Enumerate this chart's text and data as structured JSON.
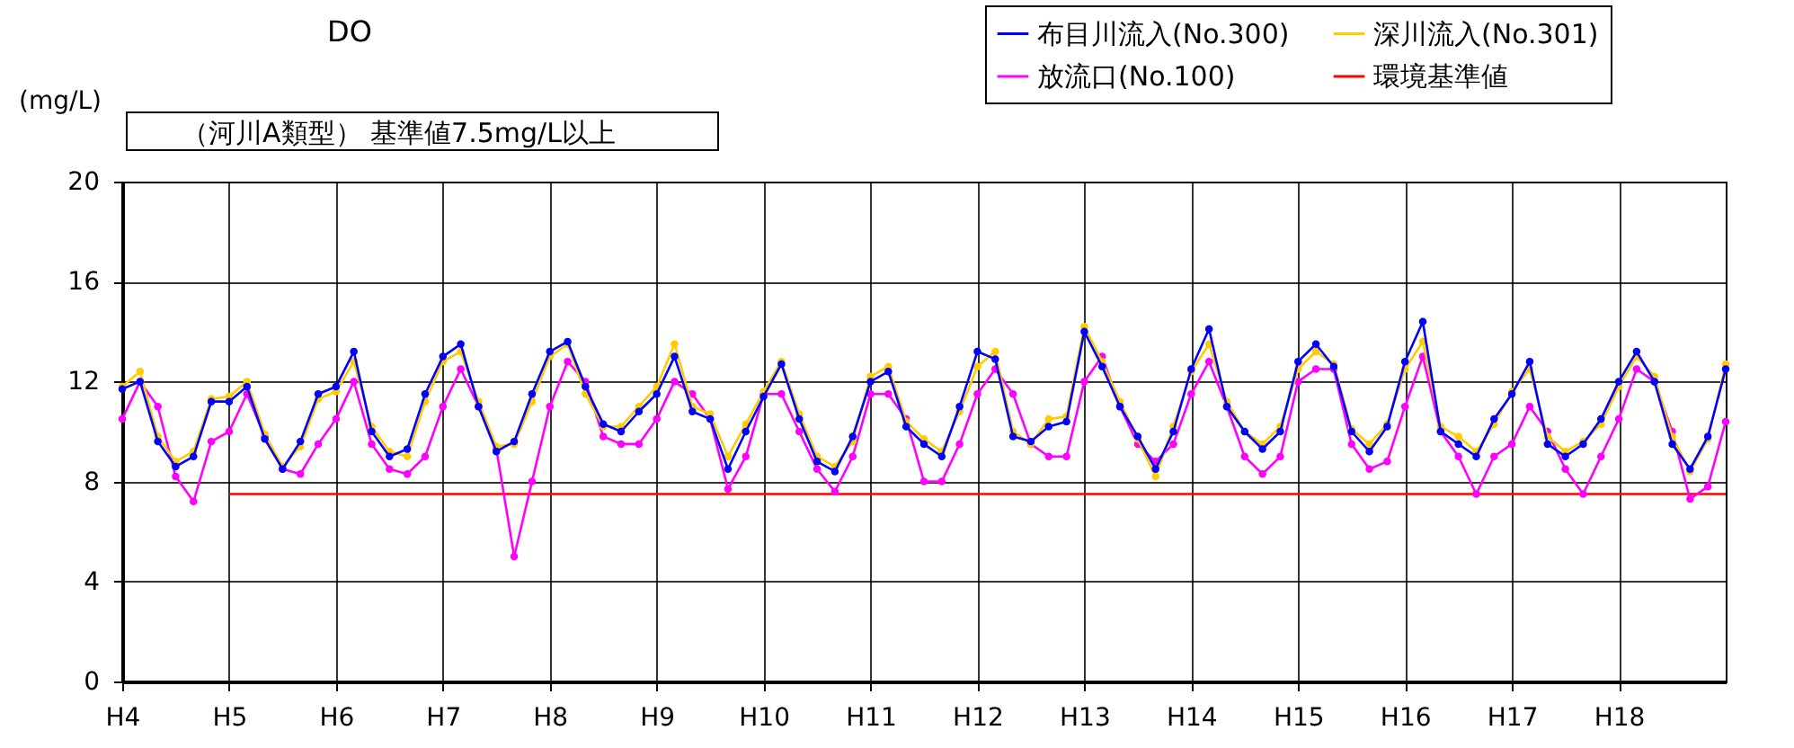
{
  "chart_data": {
    "type": "line",
    "title": "DO",
    "ylabel": "(mg/L)",
    "annotations": [
      "（河川A類型） 基準値7.5mg/L以上"
    ],
    "categories": [
      "H4",
      null,
      null,
      null,
      null,
      null,
      "H5",
      null,
      null,
      null,
      null,
      null,
      "H6",
      null,
      null,
      null,
      null,
      null,
      "H7",
      null,
      null,
      null,
      null,
      null,
      "H8",
      null,
      null,
      null,
      null,
      null,
      "H9",
      null,
      null,
      null,
      null,
      null,
      "H10",
      null,
      null,
      null,
      null,
      null,
      "H11",
      null,
      null,
      null,
      null,
      null,
      "H12",
      null,
      null,
      null,
      null,
      null,
      "H13",
      null,
      null,
      null,
      null,
      null,
      "H14",
      null,
      null,
      null,
      null,
      null,
      "H15",
      null,
      null,
      null,
      null,
      null,
      "H16",
      null,
      null,
      null,
      null,
      null,
      "H17",
      null,
      null,
      null,
      null,
      null,
      "H18",
      null,
      null,
      null,
      null,
      null,
      null
    ],
    "ylim": [
      0,
      20
    ],
    "yticks": [
      0,
      4,
      8,
      12,
      16,
      20
    ],
    "grid": true,
    "legend": "top right",
    "marker": "circle",
    "series": [
      {
        "name": "布目川流入(No.300)",
        "color": "#0000ff",
        "values": [
          11.7,
          12.0,
          9.6,
          8.6,
          9.0,
          11.2,
          11.2,
          11.8,
          9.7,
          8.5,
          9.6,
          11.5,
          11.8,
          13.2,
          10.0,
          9.0,
          9.3,
          11.5,
          13.0,
          13.5,
          11.0,
          9.2,
          9.6,
          11.5,
          13.2,
          13.6,
          11.8,
          10.3,
          10.0,
          10.8,
          11.5,
          13.0,
          10.8,
          10.5,
          8.5,
          10.0,
          11.4,
          12.7,
          10.5,
          8.8,
          8.4,
          9.8,
          12.0,
          12.4,
          10.2,
          9.5,
          9.0,
          11.0,
          13.2,
          12.9,
          9.8,
          9.6,
          10.2,
          10.4,
          14.0,
          12.6,
          11.0,
          9.8,
          8.5,
          10.0,
          12.5,
          14.1,
          11.0,
          10.0,
          9.3,
          10.0,
          12.8,
          13.5,
          12.6,
          10.0,
          9.2,
          10.2,
          12.8,
          14.4,
          10.0,
          9.5,
          9.0,
          10.5,
          11.5,
          12.8,
          9.5,
          9.0,
          9.5,
          10.5,
          12.0,
          13.2,
          12.0,
          9.5,
          8.5,
          9.8,
          12.5
        ]
      },
      {
        "name": "深川流入(No.301)",
        "color": "#ffcc00",
        "values": [
          11.8,
          12.4,
          9.8,
          8.8,
          9.2,
          11.3,
          11.4,
          12.0,
          9.9,
          8.6,
          9.4,
          11.3,
          11.6,
          12.8,
          10.2,
          9.2,
          9.0,
          11.2,
          12.8,
          13.2,
          11.2,
          9.4,
          9.5,
          11.2,
          13.0,
          13.5,
          11.5,
          10.2,
          10.2,
          11.0,
          11.8,
          13.5,
          11.0,
          10.7,
          9.0,
          10.3,
          11.6,
          12.8,
          10.7,
          9.0,
          8.6,
          9.6,
          12.2,
          12.6,
          10.4,
          9.7,
          9.2,
          10.8,
          12.6,
          13.2,
          10.0,
          9.5,
          10.5,
          10.6,
          14.2,
          12.8,
          11.2,
          9.7,
          8.2,
          10.2,
          12.4,
          13.5,
          11.2,
          10.0,
          9.5,
          10.2,
          12.5,
          13.2,
          12.7,
          10.1,
          9.5,
          10.3,
          12.5,
          13.6,
          10.2,
          9.8,
          9.2,
          10.3,
          11.6,
          12.5,
          9.8,
          9.2,
          9.6,
          10.3,
          11.8,
          13.0,
          12.2,
          9.8,
          8.4,
          9.7,
          12.7
        ]
      },
      {
        "name": "放流口(No.100)",
        "color": "#ff00ff",
        "values": [
          10.5,
          12.0,
          11.0,
          8.2,
          7.2,
          9.6,
          10.0,
          11.5,
          9.8,
          8.5,
          8.3,
          9.5,
          10.5,
          12.0,
          9.5,
          8.5,
          8.3,
          9.0,
          11.0,
          12.5,
          11.0,
          9.3,
          5.0,
          8.0,
          11.0,
          12.8,
          12.0,
          9.8,
          9.5,
          9.5,
          10.5,
          12.0,
          11.5,
          10.5,
          7.7,
          9.0,
          11.5,
          11.5,
          10.0,
          8.5,
          7.6,
          9.0,
          11.5,
          11.5,
          10.5,
          8.0,
          8.0,
          9.5,
          11.5,
          12.5,
          11.5,
          9.5,
          9.0,
          9.0,
          12.0,
          13.0,
          11.0,
          9.5,
          8.8,
          9.5,
          11.5,
          12.8,
          11.0,
          9.0,
          8.3,
          9.0,
          12.0,
          12.5,
          12.5,
          9.5,
          8.5,
          8.8,
          11.0,
          13.0,
          10.0,
          9.0,
          7.5,
          9.0,
          9.5,
          11.0,
          10.0,
          8.5,
          7.5,
          9.0,
          10.5,
          12.5,
          12.0,
          10.0,
          7.3,
          7.8,
          10.4
        ]
      },
      {
        "name": "環境基準値",
        "color": "#ff0000",
        "marker": "none",
        "values": [
          null,
          null,
          null,
          null,
          null,
          null,
          7.5,
          7.5,
          7.5,
          7.5,
          7.5,
          7.5,
          7.5,
          7.5,
          7.5,
          7.5,
          7.5,
          7.5,
          7.5,
          7.5,
          7.5,
          7.5,
          7.5,
          7.5,
          7.5,
          7.5,
          7.5,
          7.5,
          7.5,
          7.5,
          7.5,
          7.5,
          7.5,
          7.5,
          7.5,
          7.5,
          7.5,
          7.5,
          7.5,
          7.5,
          7.5,
          7.5,
          7.5,
          7.5,
          7.5,
          7.5,
          7.5,
          7.5,
          7.5,
          7.5,
          7.5,
          7.5,
          7.5,
          7.5,
          7.5,
          7.5,
          7.5,
          7.5,
          7.5,
          7.5,
          7.5,
          7.5,
          7.5,
          7.5,
          7.5,
          7.5,
          7.5,
          7.5,
          7.5,
          7.5,
          7.5,
          7.5,
          7.5,
          7.5,
          7.5,
          7.5,
          7.5,
          7.5,
          7.5,
          7.5,
          7.5,
          7.5,
          7.5,
          7.5,
          7.5,
          7.5,
          7.5,
          7.5,
          7.5,
          7.5,
          7.5
        ]
      }
    ]
  }
}
